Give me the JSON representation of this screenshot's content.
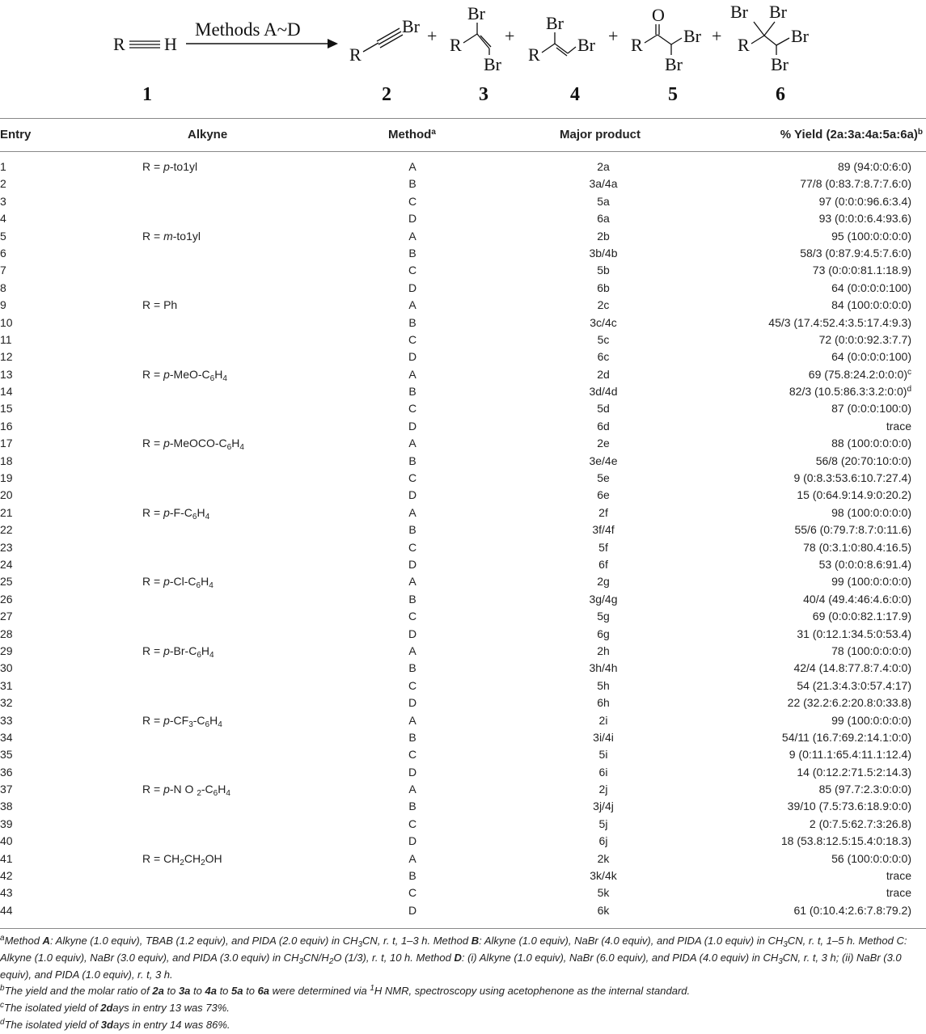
{
  "scheme": {
    "arrow_label": "Methods A~D",
    "compounds": [
      "1",
      "2",
      "3",
      "4",
      "5",
      "6"
    ],
    "atoms": {
      "R": "R",
      "H": "H",
      "Br": "Br",
      "O": "O"
    },
    "plus": "+"
  },
  "table": {
    "headers": {
      "entry": "Entry",
      "alkyne": "Alkyne",
      "method": "Method",
      "method_sup": "a",
      "product": "Major product",
      "yield": "% Yield (2a:3a:4a:5a:6a)",
      "yield_sup": "b"
    },
    "rows": [
      {
        "entry": "1",
        "alkyne": [
          "R = ",
          "p",
          "-to1yl"
        ],
        "method": "A",
        "product": "2a",
        "yield": "89 (94:0:0:6:0)"
      },
      {
        "entry": "2",
        "method": "B",
        "product": "3a/4a",
        "yield": "77/8 (0:83.7:8.7:7.6:0)"
      },
      {
        "entry": "3",
        "method": "C",
        "product": "5a",
        "yield": "97 (0:0:0:96.6:3.4)"
      },
      {
        "entry": "4",
        "method": "D",
        "product": "6a",
        "yield": "93 (0:0:0:6.4:93.6)"
      },
      {
        "entry": "5",
        "alkyne": [
          "R = ",
          "m",
          "-to1yl"
        ],
        "method": "A",
        "product": "2b",
        "yield": "95 (100:0:0:0:0)"
      },
      {
        "entry": "6",
        "method": "B",
        "product": "3b/4b",
        "yield": "58/3 (0:87.9:4.5:7.6:0)"
      },
      {
        "entry": "7",
        "method": "C",
        "product": "5b",
        "yield": "73 (0:0:0:81.1:18.9)"
      },
      {
        "entry": "8",
        "method": "D",
        "product": "6b",
        "yield": "64 (0:0:0:0:100)"
      },
      {
        "entry": "9",
        "alkyne": [
          "R = Ph"
        ],
        "method": "A",
        "product": "2c",
        "yield": "84 (100:0:0:0:0)"
      },
      {
        "entry": "10",
        "method": "B",
        "product": "3c/4c",
        "yield": "45/3 (17.4:52.4:3.5:17.4:9.3)"
      },
      {
        "entry": "11",
        "method": "C",
        "product": "5c",
        "yield": "72 (0:0:0:92.3:7.7)"
      },
      {
        "entry": "12",
        "method": "D",
        "product": "6c",
        "yield": "64 (0:0:0:0:100)"
      },
      {
        "entry": "13",
        "alkyne": [
          "R = ",
          "p",
          "-MeO-C",
          "6",
          "H",
          "4"
        ],
        "method": "A",
        "product": "2d",
        "yield": "69 (75.8:24.2:0:0:0)",
        "yield_sup": "c"
      },
      {
        "entry": "14",
        "method": "B",
        "product": "3d/4d",
        "yield": "82/3 (10.5:86.3:3.2:0:0)",
        "yield_sup": "d"
      },
      {
        "entry": "15",
        "method": "C",
        "product": "5d",
        "yield": "87 (0:0:0:100:0)"
      },
      {
        "entry": "16",
        "method": "D",
        "product": "6d",
        "yield": "trace"
      },
      {
        "entry": "17",
        "alkyne": [
          "R = ",
          "p",
          "-MeOCO-C",
          "6",
          "H",
          "4"
        ],
        "method": "A",
        "product": "2e",
        "yield": "88 (100:0:0:0:0)"
      },
      {
        "entry": "18",
        "method": "B",
        "product": "3e/4e",
        "yield": "56/8 (20:70:10:0:0)"
      },
      {
        "entry": "19",
        "method": "C",
        "product": "5e",
        "yield": "9 (0:8.3:53.6:10.7:27.4)"
      },
      {
        "entry": "20",
        "method": "D",
        "product": "6e",
        "yield": "15 (0:64.9:14.9:0:20.2)"
      },
      {
        "entry": "21",
        "alkyne": [
          "R = ",
          "p",
          "-F-C",
          "6",
          "H",
          "4"
        ],
        "method": "A",
        "product": "2f",
        "yield": "98 (100:0:0:0:0)"
      },
      {
        "entry": "22",
        "method": "B",
        "product": "3f/4f",
        "yield": "55/6 (0:79.7:8.7:0:11.6)"
      },
      {
        "entry": "23",
        "method": "C",
        "product": "5f",
        "yield": "78 (0:3.1:0:80.4:16.5)"
      },
      {
        "entry": "24",
        "method": "D",
        "product": "6f",
        "yield": "53 (0:0:0:8.6:91.4)"
      },
      {
        "entry": "25",
        "alkyne": [
          "R = ",
          "p",
          "-Cl-C",
          "6",
          "H",
          "4"
        ],
        "method": "A",
        "product": "2g",
        "yield": "99 (100:0:0:0:0)"
      },
      {
        "entry": "26",
        "method": "B",
        "product": "3g/4g",
        "yield": "40/4 (49.4:46:4.6:0:0)"
      },
      {
        "entry": "27",
        "method": "C",
        "product": "5g",
        "yield": "69 (0:0:0:82.1:17.9)"
      },
      {
        "entry": "28",
        "method": "D",
        "product": "6g",
        "yield": "31 (0:12.1:34.5:0:53.4)"
      },
      {
        "entry": "29",
        "alkyne": [
          "R = ",
          "p",
          "-Br-C",
          "6",
          "H",
          "4"
        ],
        "method": "A",
        "product": "2h",
        "yield": "78 (100:0:0:0:0)"
      },
      {
        "entry": "30",
        "method": "B",
        "product": "3h/4h",
        "yield": "42/4 (14.8:77.8:7.4:0:0)"
      },
      {
        "entry": "31",
        "method": "C",
        "product": "5h",
        "yield": "54 (21.3:4.3:0:57.4:17)"
      },
      {
        "entry": "32",
        "method": "D",
        "product": "6h",
        "yield": "22 (32.2:6.2:20.8:0:33.8)"
      },
      {
        "entry": "33",
        "alkyne": [
          "R = ",
          "p",
          "-CF",
          "3",
          "-C",
          "6",
          "H",
          "4"
        ],
        "method": "A",
        "product": "2i",
        "yield": "99 (100:0:0:0:0)"
      },
      {
        "entry": "34",
        "method": "B",
        "product": "3i/4i",
        "yield": "54/11 (16.7:69.2:14.1:0:0)"
      },
      {
        "entry": "35",
        "method": "C",
        "product": "5i",
        "yield": "9 (0:11.1:65.4:11.1:12.4)"
      },
      {
        "entry": "36",
        "method": "D",
        "product": "6i",
        "yield": "14 (0:12.2:71.5:2:14.3)"
      },
      {
        "entry": "37",
        "alkyne": [
          "R = ",
          "p",
          "-N O ",
          "2",
          "-C",
          "6",
          "H",
          "4"
        ],
        "method": "A",
        "product": "2j",
        "yield": "85 (97.7:2.3:0:0:0)"
      },
      {
        "entry": "38",
        "method": "B",
        "product": "3j/4j",
        "yield": "39/10 (7.5:73.6:18.9:0:0)"
      },
      {
        "entry": "39",
        "method": "C",
        "product": "5j",
        "yield": "2 (0:7.5:62.7:3:26.8)"
      },
      {
        "entry": "40",
        "method": "D",
        "product": "6j",
        "yield": "18 (53.8:12.5:15.4:0:18.3)"
      },
      {
        "entry": "41",
        "alkyne": [
          "R = CH",
          "2",
          "CH",
          "2",
          "OH"
        ],
        "method": "A",
        "product": "2k",
        "yield": "56 (100:0:0:0:0)"
      },
      {
        "entry": "42",
        "method": "B",
        "product": "3k/4k",
        "yield": "trace"
      },
      {
        "entry": "43",
        "method": "C",
        "product": "5k",
        "yield": "trace"
      },
      {
        "entry": "44",
        "method": "D",
        "product": "6k",
        "yield": "61 (0:10.4:2.6:7.8:79.2)"
      }
    ]
  },
  "footnotes": [
    [
      {
        "t": "a",
        "s": "sup"
      },
      {
        "t": "Method "
      },
      {
        "t": "A",
        "s": "b"
      },
      {
        "t": ": Alkyne (1.0 equiv), TBAB (1.2 equiv), and PIDA (2.0 equiv) in CH"
      },
      {
        "t": "3",
        "s": "sub"
      },
      {
        "t": "CN, r. t, 1–3 h. Method "
      },
      {
        "t": "B",
        "s": "b"
      },
      {
        "t": ": Alkyne (1.0 equiv), NaBr (4.0 equiv), and PIDA (1.0 equiv) in CH"
      },
      {
        "t": "3",
        "s": "sub"
      },
      {
        "t": "CN, r. t, 1–5 h. Method C: Alkyne (1.0 equiv), NaBr (3.0 equiv), and PIDA (3.0 equiv) in CH"
      },
      {
        "t": "3",
        "s": "sub"
      },
      {
        "t": "CN/H"
      },
      {
        "t": "2",
        "s": "sub"
      },
      {
        "t": "O (1/3), r. t, 10 h. Method "
      },
      {
        "t": "D",
        "s": "b"
      },
      {
        "t": ": (i) Alkyne (1.0 equiv), NaBr (6.0 equiv), and PIDA (4.0 equiv) in CH"
      },
      {
        "t": "3",
        "s": "sub"
      },
      {
        "t": "CN, r. t, 3 h; (ii) NaBr (3.0 equiv), and PIDA (1.0 equiv), r. t, 3 h."
      }
    ],
    [
      {
        "t": "b",
        "s": "sup"
      },
      {
        "t": "The yield and the molar ratio of "
      },
      {
        "t": "2a",
        "s": "b"
      },
      {
        "t": " to "
      },
      {
        "t": "3a",
        "s": "b"
      },
      {
        "t": " to "
      },
      {
        "t": "4a",
        "s": "b"
      },
      {
        "t": " to "
      },
      {
        "t": "5a",
        "s": "b"
      },
      {
        "t": " to "
      },
      {
        "t": "6a",
        "s": "b"
      },
      {
        "t": " were determined via "
      },
      {
        "t": "1",
        "s": "sup"
      },
      {
        "t": "H NMR, spectroscopy using acetophenone as the internal standard."
      }
    ],
    [
      {
        "t": "c",
        "s": "sup"
      },
      {
        "t": "The isolated yield of "
      },
      {
        "t": "2d",
        "s": "b"
      },
      {
        "t": "ays in entry 13 was 73%."
      }
    ],
    [
      {
        "t": "d",
        "s": "sup"
      },
      {
        "t": "The isolated yield of "
      },
      {
        "t": "3d",
        "s": "b"
      },
      {
        "t": "ays in entry 14 was 86%."
      }
    ]
  ]
}
